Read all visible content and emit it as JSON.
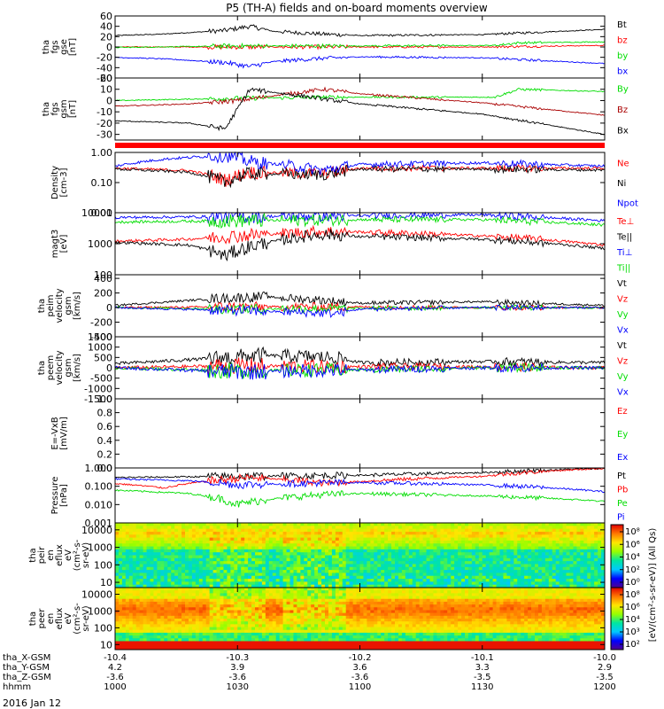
{
  "title": "P5 (TH-A) fields and on-board moments overview",
  "date_label": "2016 Jan 12",
  "x_axis": {
    "rows": [
      {
        "name": "tha_X-GSM",
        "values": [
          "-10.4",
          "-10.3",
          "-10.2",
          "-10.1",
          "-10.0"
        ]
      },
      {
        "name": "tha_Y-GSM",
        "values": [
          "4.2",
          "3.9",
          "3.6",
          "3.3",
          "2.9"
        ]
      },
      {
        "name": "tha_Z-GSM",
        "values": [
          "-3.6",
          "-3.6",
          "-3.6",
          "-3.5",
          "-3.5"
        ]
      },
      {
        "name": "hhmm",
        "values": [
          "1000",
          "1030",
          "1100",
          "1130",
          "1200"
        ]
      }
    ]
  },
  "colorbar": {
    "label": "[eV/(cm²-s-sr-eV)] (All Qs)",
    "pir_ticks": [
      "10⁸",
      "10⁶",
      "10⁴",
      "10²",
      "10⁰"
    ],
    "per_ticks": [
      "10⁸",
      "10⁶",
      "10⁴",
      "10³",
      "10²"
    ]
  },
  "chart_data": [
    {
      "type": "line",
      "panel": "fgs_gse",
      "ylabel": [
        "tha",
        "fgs",
        "gse",
        "[nT]"
      ],
      "yticks": [
        "60",
        "40",
        "20",
        "0",
        "-20",
        "-40",
        "-60"
      ],
      "ylim": [
        -60,
        60
      ],
      "series": [
        {
          "name": "Bt",
          "color": "#000000",
          "x": [
            10.0,
            10.2,
            10.45,
            10.55,
            10.65,
            10.85,
            11.0,
            11.5,
            12.0
          ],
          "y": [
            22,
            25,
            32,
            40,
            30,
            25,
            22,
            24,
            34
          ]
        },
        {
          "name": "bz",
          "color": "#ff0000",
          "x": [
            10.0,
            10.5,
            11.0,
            11.5,
            12.0
          ],
          "y": [
            0,
            0,
            0,
            0,
            3
          ]
        },
        {
          "name": "by",
          "color": "#00dd00",
          "x": [
            10.0,
            10.5,
            11.0,
            11.55,
            11.65,
            12.0
          ],
          "y": [
            -1,
            2,
            2,
            3,
            8,
            10
          ]
        },
        {
          "name": "bx",
          "color": "#0000ff",
          "x": [
            10.0,
            10.2,
            10.45,
            10.55,
            10.65,
            10.85,
            11.0,
            11.5,
            12.0
          ],
          "y": [
            -20,
            -23,
            -30,
            -38,
            -28,
            -22,
            -19,
            -21,
            -32
          ]
        }
      ]
    },
    {
      "type": "line",
      "panel": "fgs_gsm",
      "ylabel": [
        "tha",
        "fgs",
        "gsm",
        "[nT]"
      ],
      "yticks": [
        "20",
        "10",
        "0",
        "-10",
        "-20",
        "-30"
      ],
      "ylim": [
        -35,
        20
      ],
      "series": [
        {
          "name": "By",
          "color": "#00dd00",
          "x": [
            10.0,
            10.5,
            10.85,
            11.2,
            11.55,
            11.65,
            12.0
          ],
          "y": [
            0,
            2,
            3,
            3,
            3,
            10,
            8
          ]
        },
        {
          "name": "Bz",
          "color": "#aa0000",
          "x": [
            10.0,
            10.3,
            10.5,
            10.85,
            11.0,
            11.5,
            12.0
          ],
          "y": [
            -5,
            -3,
            0,
            10,
            6,
            -2,
            -13
          ]
        },
        {
          "name": "Bx",
          "color": "#000000",
          "x": [
            10.0,
            10.3,
            10.45,
            10.55,
            10.8,
            11.0,
            11.5,
            12.0
          ],
          "y": [
            -18,
            -20,
            -25,
            10,
            3,
            -3,
            -12,
            -30
          ]
        }
      ]
    },
    {
      "type": "line",
      "panel": "density",
      "scale": "log",
      "ylabel": [
        "Density",
        "[cm-3]"
      ],
      "yticks": [
        "1.00",
        "0.10",
        "0.01"
      ],
      "ylim": [
        0.01,
        1.0
      ],
      "series": [
        {
          "name": "Ne",
          "color": "#ff0000",
          "x": [
            10.0,
            10.3,
            10.45,
            10.55,
            10.85,
            11.0,
            11.5,
            12.0
          ],
          "y": [
            0.3,
            0.25,
            0.12,
            0.22,
            0.2,
            0.3,
            0.3,
            0.3
          ]
        },
        {
          "name": "Ni",
          "color": "#000000",
          "x": [
            10.0,
            10.3,
            10.45,
            10.55,
            10.85,
            11.0,
            11.5,
            12.0
          ],
          "y": [
            0.28,
            0.22,
            0.1,
            0.2,
            0.18,
            0.28,
            0.28,
            0.26
          ]
        },
        {
          "name": "Npot",
          "color": "#0000ff",
          "x": [
            10.0,
            10.2,
            10.45,
            10.55,
            10.85,
            11.0,
            11.5,
            12.0
          ],
          "y": [
            0.35,
            0.6,
            0.8,
            0.5,
            0.25,
            0.4,
            0.45,
            0.35
          ]
        }
      ]
    },
    {
      "type": "line",
      "panel": "temperature",
      "scale": "log",
      "ylabel": [
        "magt3",
        "[eV]"
      ],
      "yticks": [
        "10000",
        "1000",
        "100"
      ],
      "ylim": [
        100,
        10000
      ],
      "series": [
        {
          "name": "Te⊥",
          "color": "#ff0000",
          "x": [
            10.0,
            10.3,
            10.5,
            10.85,
            11.0,
            11.5,
            12.0
          ],
          "y": [
            1200,
            1400,
            1800,
            2500,
            2400,
            1800,
            900
          ]
        },
        {
          "name": "Te||",
          "color": "#000000",
          "x": [
            10.0,
            10.3,
            10.45,
            10.85,
            11.0,
            11.5,
            12.0
          ],
          "y": [
            1100,
            900,
            400,
            2000,
            1700,
            1400,
            700
          ]
        },
        {
          "name": "Ti⊥",
          "color": "#0000ff",
          "x": [
            10.0,
            10.5,
            11.0,
            11.5,
            12.0
          ],
          "y": [
            7000,
            7500,
            8000,
            8500,
            5500
          ]
        },
        {
          "name": "Ti||",
          "color": "#00dd00",
          "x": [
            10.0,
            10.5,
            11.0,
            11.5,
            12.0
          ],
          "y": [
            5000,
            5500,
            6000,
            6000,
            4000
          ]
        }
      ]
    },
    {
      "type": "line",
      "panel": "peim_velocity",
      "ylabel": [
        "tha",
        "peim",
        "velocity",
        "gsm",
        "[km/s]"
      ],
      "yticks": [
        "400",
        "200",
        "0",
        "-200",
        "-400"
      ],
      "ylim": [
        -400,
        450
      ],
      "series": [
        {
          "name": "Vt",
          "color": "#000000",
          "x": [
            10.0,
            10.4,
            10.6,
            10.85,
            11.0,
            11.5,
            12.0
          ],
          "y": [
            30,
            120,
            150,
            100,
            60,
            80,
            30
          ]
        },
        {
          "name": "Vz",
          "color": "#ff0000",
          "x": [
            10.0,
            10.5,
            11.0,
            11.5,
            12.0
          ],
          "y": [
            0,
            10,
            10,
            0,
            0
          ]
        },
        {
          "name": "Vy",
          "color": "#00dd00",
          "x": [
            10.0,
            10.5,
            11.0,
            11.5,
            12.0
          ],
          "y": [
            0,
            -20,
            -10,
            0,
            0
          ]
        },
        {
          "name": "Vx",
          "color": "#0000ff",
          "x": [
            10.0,
            10.5,
            10.9,
            11.0,
            11.5,
            12.0
          ],
          "y": [
            0,
            -40,
            -80,
            -20,
            0,
            0
          ]
        }
      ]
    },
    {
      "type": "line",
      "panel": "peem_velocity",
      "ylabel": [
        "tha",
        "peem",
        "velocity",
        "gsm",
        "[km/s]"
      ],
      "yticks": [
        "1500",
        "1000",
        "500",
        "0",
        "-500",
        "-1000",
        "-1500"
      ],
      "ylim": [
        -1500,
        1500
      ],
      "series": [
        {
          "name": "Vt",
          "color": "#000000",
          "x": [
            10.0,
            10.4,
            10.6,
            10.9,
            11.0,
            11.5,
            12.0
          ],
          "y": [
            200,
            450,
            600,
            500,
            250,
            300,
            250
          ]
        },
        {
          "name": "Vz",
          "color": "#ff0000",
          "x": [
            10.0,
            10.5,
            11.0,
            11.5,
            12.0
          ],
          "y": [
            0,
            100,
            50,
            50,
            0
          ]
        },
        {
          "name": "Vy",
          "color": "#00dd00",
          "x": [
            10.0,
            10.5,
            11.0,
            11.5,
            12.0
          ],
          "y": [
            0,
            -150,
            -100,
            0,
            0
          ]
        },
        {
          "name": "Vx",
          "color": "#0000ff",
          "x": [
            10.0,
            10.5,
            11.0,
            11.5,
            12.0
          ],
          "y": [
            0,
            -200,
            -100,
            0,
            0
          ]
        }
      ]
    },
    {
      "type": "line",
      "panel": "efield",
      "ylabel": [
        "E=-VxB",
        "[mV/m]"
      ],
      "yticks": [
        "1.0",
        "0.8",
        "0.6",
        "0.4",
        "0.2",
        "0.0"
      ],
      "ylim": [
        0,
        1.0
      ],
      "series": [
        {
          "name": "Ez",
          "color": "#ff0000",
          "x": [],
          "y": []
        },
        {
          "name": "Ey",
          "color": "#00dd00",
          "x": [],
          "y": []
        },
        {
          "name": "Ex",
          "color": "#0000ff",
          "x": [],
          "y": []
        }
      ]
    },
    {
      "type": "line",
      "panel": "pressure",
      "scale": "log",
      "ylabel": [
        "Pressure",
        "[nPa]"
      ],
      "yticks": [
        "1.000",
        "0.100",
        "0.010",
        "0.001"
      ],
      "ylim": [
        0.001,
        1.0
      ],
      "series": [
        {
          "name": "Pt",
          "color": "#000000",
          "x": [
            10.0,
            10.5,
            11.0,
            11.5,
            12.0
          ],
          "y": [
            0.3,
            0.35,
            0.4,
            0.55,
            0.95
          ]
        },
        {
          "name": "Pb",
          "color": "#ff0000",
          "x": [
            10.0,
            10.2,
            10.4,
            10.55,
            10.85,
            11.0,
            11.5,
            12.0
          ],
          "y": [
            0.14,
            0.08,
            0.2,
            0.3,
            0.15,
            0.18,
            0.35,
            0.95
          ]
        },
        {
          "name": "Pe",
          "color": "#00dd00",
          "x": [
            10.0,
            10.3,
            10.5,
            10.85,
            11.0,
            11.5,
            12.0
          ],
          "y": [
            0.06,
            0.04,
            0.01,
            0.035,
            0.04,
            0.03,
            0.015
          ]
        },
        {
          "name": "Pi",
          "color": "#0000ff",
          "x": [
            10.0,
            10.3,
            10.5,
            10.85,
            11.0,
            11.5,
            12.0
          ],
          "y": [
            0.25,
            0.2,
            0.12,
            0.15,
            0.16,
            0.12,
            0.05
          ]
        }
      ]
    },
    {
      "type": "heatmap",
      "panel": "peir_spectrogram",
      "ylabel": [
        "tha",
        "peir",
        "en",
        "eflux",
        "eV",
        "(cm²-s-",
        "sr-eV)"
      ],
      "yticks": [
        "10000",
        "1000",
        "100",
        "10"
      ],
      "ylim": [
        5,
        25000
      ]
    },
    {
      "type": "heatmap",
      "panel": "peer_spectrogram",
      "ylabel": [
        "tha",
        "peer",
        "en",
        "eflux",
        "eV",
        "(cm²-s-",
        "sr-eV)"
      ],
      "yticks": [
        "10000",
        "1000",
        "100",
        "10"
      ],
      "ylim": [
        5,
        25000
      ]
    }
  ]
}
